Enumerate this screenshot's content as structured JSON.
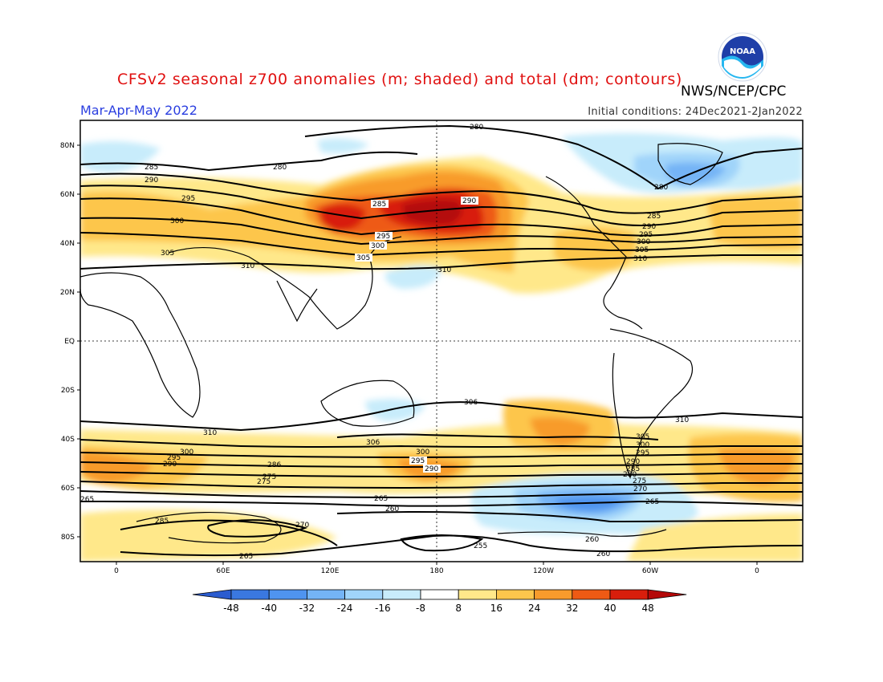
{
  "header": {
    "title": "CFSv2 seasonal z700 anomalies (m; shaded) and total (dm; contours)",
    "agency": "NWS/NCEP/CPC",
    "season": "Mar-Apr-May 2022",
    "initial_conditions": "Initial conditions: 24Dec2021-2Jan2022",
    "logo_text": "NOAA"
  },
  "axes": {
    "lat_labels": [
      "80N",
      "60N",
      "40N",
      "20N",
      "EQ",
      "20S",
      "40S",
      "60S",
      "80S"
    ],
    "lon_labels": [
      "0",
      "60E",
      "120E",
      "180",
      "120W",
      "60W",
      "0"
    ]
  },
  "colorbar": {
    "ticks": [
      "-48",
      "-40",
      "-32",
      "-24",
      "-16",
      "-8",
      "8",
      "16",
      "24",
      "32",
      "40",
      "48"
    ],
    "colors": [
      "#2b5ccf",
      "#3a78e0",
      "#4f94ef",
      "#74b4f6",
      "#a0d4fa",
      "#c8ecfb",
      "#ffffff",
      "#ffe88a",
      "#fdc64c",
      "#f89b2c",
      "#ee5a14",
      "#d81e0c",
      "#b40808"
    ]
  },
  "contour_labels": {
    "north": [
      "280",
      "285",
      "290",
      "295",
      "300",
      "305",
      "310"
    ],
    "north_east": [
      "280",
      "285",
      "290",
      "295",
      "300",
      "305",
      "310"
    ],
    "north_pacific": [
      "285",
      "290",
      "295",
      "300",
      "305",
      "310"
    ],
    "south_west": [
      "310",
      "300",
      "295",
      "290",
      "286",
      "275",
      "265"
    ],
    "south_central": [
      "306",
      "300",
      "295",
      "290",
      "265",
      "260",
      "255"
    ],
    "south_east": [
      "310",
      "305",
      "300",
      "295",
      "290",
      "285",
      "280",
      "275",
      "270",
      "265",
      "260"
    ],
    "antarctic": [
      "285",
      "270",
      "265"
    ]
  }
}
